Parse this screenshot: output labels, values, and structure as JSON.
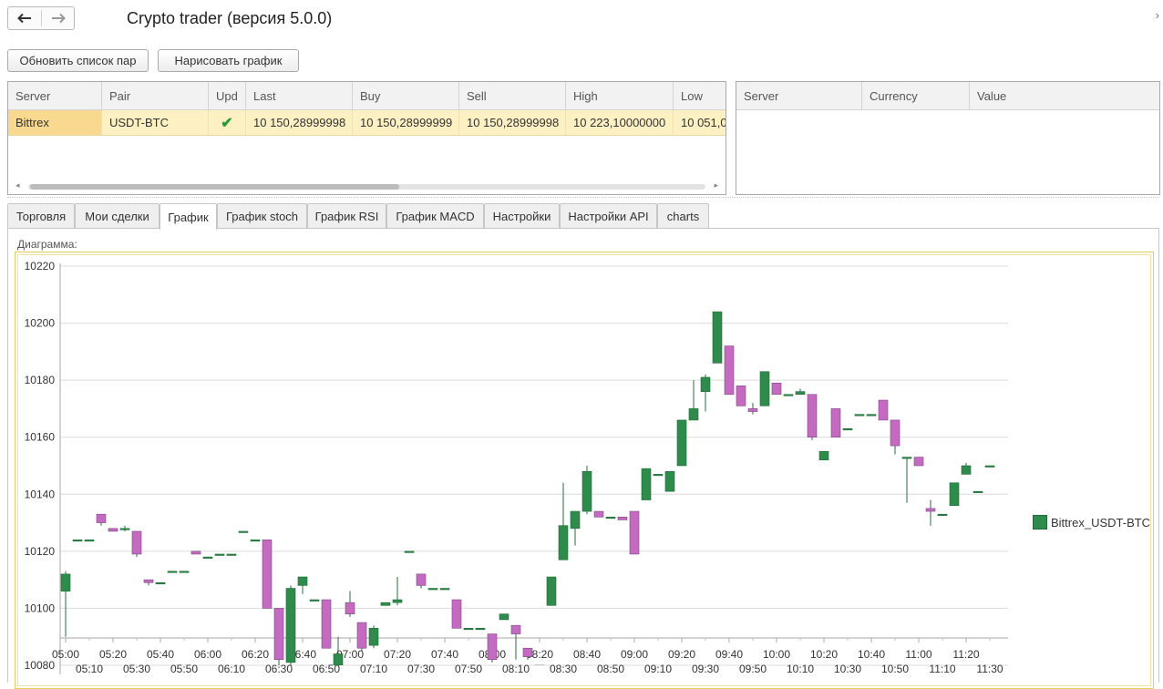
{
  "window": {
    "title": "Crypto trader (версия 5.0.0)",
    "back_icon": "arrow-left",
    "forward_icon": "arrow-right",
    "corner_icon": "chevron-right"
  },
  "toolbar": {
    "refresh_pairs_label": "Обновить список пар",
    "draw_chart_label": "Нарисовать график"
  },
  "pairs_table": {
    "columns": [
      "Server",
      "Pair",
      "Upd",
      "Last",
      "Buy",
      "Sell",
      "High",
      "Low"
    ],
    "rows": [
      {
        "server": "Bittrex",
        "pair": "USDT-BTC",
        "upd": "✔",
        "last": "10 150,28999998",
        "buy": "10 150,28999999",
        "sell": "10 150,28999998",
        "high": "10 223,10000000",
        "low": "10 051,0"
      }
    ]
  },
  "balances_table": {
    "columns": [
      "Server",
      "Currency",
      "Value"
    ]
  },
  "tabs": [
    {
      "label": "Торговля"
    },
    {
      "label": "Мои сделки"
    },
    {
      "label": "График",
      "active": true
    },
    {
      "label": "График stoch"
    },
    {
      "label": "График RSI"
    },
    {
      "label": "График MACD"
    },
    {
      "label": "Настройки"
    },
    {
      "label": "Настройки API"
    },
    {
      "label": "charts"
    }
  ],
  "diagram_label": "Диаграмма:",
  "colors": {
    "bull": "#2f8b4b",
    "bear": "#c56ac1",
    "grid": "#dcdcdc",
    "selected_row": "#fdf0c2",
    "selected_cell": "#f9d990",
    "chart_border": "#e3cf59"
  },
  "chart_data": {
    "type": "candlestick",
    "title": "",
    "xlabel": "",
    "ylabel": "",
    "ylim": [
      10080,
      10220
    ],
    "y_ticks": [
      10080,
      10100,
      10120,
      10140,
      10160,
      10180,
      10200,
      10220
    ],
    "x_ticks_upper": [
      "05:00",
      "05:20",
      "05:40",
      "06:00",
      "06:20",
      "06:40",
      "07:00",
      "07:20",
      "07:40",
      "08:00",
      "08:20",
      "08:40",
      "09:00",
      "09:20",
      "09:40",
      "10:00",
      "10:20",
      "10:40",
      "11:00",
      "11:20"
    ],
    "x_ticks_lower": [
      "05:10",
      "05:30",
      "05:50",
      "06:10",
      "06:30",
      "06:50",
      "07:10",
      "07:30",
      "07:50",
      "08:10",
      "08:30",
      "08:50",
      "09:10",
      "09:30",
      "09:50",
      "10:10",
      "10:30",
      "10:50",
      "11:10",
      "11:30"
    ],
    "legend": [
      {
        "name": "Bittrex_USDT-BTC",
        "position": "right"
      }
    ],
    "series": [
      {
        "name": "Bittrex_USDT-BTC",
        "candles": [
          {
            "t": "05:00",
            "o": 10106,
            "h": 10113,
            "l": 10090,
            "c": 10112
          },
          {
            "t": "05:05",
            "o": 10124,
            "h": 10124,
            "l": 10124,
            "c": 10124
          },
          {
            "t": "05:10",
            "o": 10124,
            "h": 10124,
            "l": 10124,
            "c": 10124
          },
          {
            "t": "05:15",
            "o": 10133,
            "h": 10133,
            "l": 10129,
            "c": 10130
          },
          {
            "t": "05:20",
            "o": 10128,
            "h": 10128,
            "l": 10127,
            "c": 10127
          },
          {
            "t": "05:25",
            "o": 10128,
            "h": 10129,
            "l": 10127,
            "c": 10128
          },
          {
            "t": "05:30",
            "o": 10127,
            "h": 10127,
            "l": 10118,
            "c": 10119
          },
          {
            "t": "05:35",
            "o": 10110,
            "h": 10110,
            "l": 10108,
            "c": 10109
          },
          {
            "t": "05:40",
            "o": 10109,
            "h": 10109,
            "l": 10109,
            "c": 10109
          },
          {
            "t": "05:45",
            "o": 10113,
            "h": 10113,
            "l": 10113,
            "c": 10113
          },
          {
            "t": "05:50",
            "o": 10113,
            "h": 10113,
            "l": 10113,
            "c": 10113
          },
          {
            "t": "05:55",
            "o": 10120,
            "h": 10120,
            "l": 10119,
            "c": 10119
          },
          {
            "t": "06:00",
            "o": 10118,
            "h": 10118,
            "l": 10118,
            "c": 10118
          },
          {
            "t": "06:05",
            "o": 10119,
            "h": 10119,
            "l": 10119,
            "c": 10119
          },
          {
            "t": "06:10",
            "o": 10119,
            "h": 10119,
            "l": 10119,
            "c": 10119
          },
          {
            "t": "06:15",
            "o": 10127,
            "h": 10127,
            "l": 10127,
            "c": 10127
          },
          {
            "t": "06:20",
            "o": 10124,
            "h": 10124,
            "l": 10124,
            "c": 10124
          },
          {
            "t": "06:25",
            "o": 10124,
            "h": 10124,
            "l": 10100,
            "c": 10100
          },
          {
            "t": "06:30",
            "o": 10100,
            "h": 10100,
            "l": 10080,
            "c": 10082
          },
          {
            "t": "06:35",
            "o": 10081,
            "h": 10108,
            "l": 10080,
            "c": 10107
          },
          {
            "t": "06:40",
            "o": 10108,
            "h": 10111,
            "l": 10105,
            "c": 10111
          },
          {
            "t": "06:45",
            "o": 10103,
            "h": 10103,
            "l": 10103,
            "c": 10103
          },
          {
            "t": "06:50",
            "o": 10103,
            "h": 10103,
            "l": 10086,
            "c": 10086
          },
          {
            "t": "06:55",
            "o": 10080,
            "h": 10090,
            "l": 10080,
            "c": 10084
          },
          {
            "t": "07:00",
            "o": 10102,
            "h": 10106,
            "l": 10097,
            "c": 10098
          },
          {
            "t": "07:05",
            "o": 10095,
            "h": 10095,
            "l": 10085,
            "c": 10086
          },
          {
            "t": "07:10",
            "o": 10087,
            "h": 10094,
            "l": 10086,
            "c": 10093
          },
          {
            "t": "07:15",
            "o": 10101,
            "h": 10102,
            "l": 10101,
            "c": 10102
          },
          {
            "t": "07:20",
            "o": 10102,
            "h": 10111,
            "l": 10101,
            "c": 10103
          },
          {
            "t": "07:25",
            "o": 10120,
            "h": 10120,
            "l": 10120,
            "c": 10120
          },
          {
            "t": "07:30",
            "o": 10112,
            "h": 10112,
            "l": 10107,
            "c": 10108
          },
          {
            "t": "07:35",
            "o": 10107,
            "h": 10107,
            "l": 10107,
            "c": 10107
          },
          {
            "t": "07:40",
            "o": 10107,
            "h": 10107,
            "l": 10107,
            "c": 10107
          },
          {
            "t": "07:45",
            "o": 10103,
            "h": 10103,
            "l": 10093,
            "c": 10093
          },
          {
            "t": "07:50",
            "o": 10093,
            "h": 10093,
            "l": 10093,
            "c": 10093
          },
          {
            "t": "07:55",
            "o": 10093,
            "h": 10093,
            "l": 10093,
            "c": 10093
          },
          {
            "t": "08:00",
            "o": 10091,
            "h": 10091,
            "l": 10081,
            "c": 10082
          },
          {
            "t": "08:05",
            "o": 10096,
            "h": 10098,
            "l": 10096,
            "c": 10098
          },
          {
            "t": "08:10",
            "o": 10094,
            "h": 10094,
            "l": 10082,
            "c": 10091
          },
          {
            "t": "08:15",
            "o": 10086,
            "h": 10086,
            "l": 10082,
            "c": 10083
          },
          {
            "t": "08:20",
            "o": 10080,
            "h": 10080,
            "l": 10080,
            "c": 10080
          },
          {
            "t": "08:25",
            "o": 10101,
            "h": 10111,
            "l": 10101,
            "c": 10111
          },
          {
            "t": "08:30",
            "o": 10117,
            "h": 10144,
            "l": 10117,
            "c": 10129
          },
          {
            "t": "08:35",
            "o": 10128,
            "h": 10134,
            "l": 10122,
            "c": 10134
          },
          {
            "t": "08:40",
            "o": 10134,
            "h": 10150,
            "l": 10133,
            "c": 10148
          },
          {
            "t": "08:45",
            "o": 10134,
            "h": 10134,
            "l": 10132,
            "c": 10132
          },
          {
            "t": "08:50",
            "o": 10132,
            "h": 10132,
            "l": 10132,
            "c": 10132
          },
          {
            "t": "08:55",
            "o": 10132,
            "h": 10132,
            "l": 10131,
            "c": 10131
          },
          {
            "t": "09:00",
            "o": 10134,
            "h": 10134,
            "l": 10119,
            "c": 10119
          },
          {
            "t": "09:05",
            "o": 10138,
            "h": 10149,
            "l": 10138,
            "c": 10149
          },
          {
            "t": "09:10",
            "o": 10147,
            "h": 10147,
            "l": 10147,
            "c": 10147
          },
          {
            "t": "09:15",
            "o": 10141,
            "h": 10148,
            "l": 10141,
            "c": 10148
          },
          {
            "t": "09:20",
            "o": 10150,
            "h": 10166,
            "l": 10150,
            "c": 10166
          },
          {
            "t": "09:25",
            "o": 10166,
            "h": 10180,
            "l": 10166,
            "c": 10170
          },
          {
            "t": "09:30",
            "o": 10176,
            "h": 10182,
            "l": 10169,
            "c": 10181
          },
          {
            "t": "09:35",
            "o": 10186,
            "h": 10204,
            "l": 10186,
            "c": 10204
          },
          {
            "t": "09:40",
            "o": 10192,
            "h": 10192,
            "l": 10175,
            "c": 10175
          },
          {
            "t": "09:45",
            "o": 10178,
            "h": 10178,
            "l": 10171,
            "c": 10171
          },
          {
            "t": "09:50",
            "o": 10170,
            "h": 10172,
            "l": 10168,
            "c": 10169
          },
          {
            "t": "09:55",
            "o": 10171,
            "h": 10183,
            "l": 10171,
            "c": 10183
          },
          {
            "t": "10:00",
            "o": 10179,
            "h": 10179,
            "l": 10175,
            "c": 10175
          },
          {
            "t": "10:05",
            "o": 10175,
            "h": 10175,
            "l": 10175,
            "c": 10175
          },
          {
            "t": "10:10",
            "o": 10175,
            "h": 10177,
            "l": 10175,
            "c": 10176
          },
          {
            "t": "10:15",
            "o": 10175,
            "h": 10175,
            "l": 10159,
            "c": 10160
          },
          {
            "t": "10:20",
            "o": 10152,
            "h": 10155,
            "l": 10152,
            "c": 10155
          },
          {
            "t": "10:25",
            "o": 10170,
            "h": 10170,
            "l": 10160,
            "c": 10160
          },
          {
            "t": "10:30",
            "o": 10163,
            "h": 10163,
            "l": 10163,
            "c": 10163
          },
          {
            "t": "10:35",
            "o": 10168,
            "h": 10168,
            "l": 10168,
            "c": 10168
          },
          {
            "t": "10:40",
            "o": 10168,
            "h": 10168,
            "l": 10168,
            "c": 10168
          },
          {
            "t": "10:45",
            "o": 10173,
            "h": 10173,
            "l": 10166,
            "c": 10166
          },
          {
            "t": "10:50",
            "o": 10166,
            "h": 10166,
            "l": 10154,
            "c": 10157
          },
          {
            "t": "10:55",
            "o": 10153,
            "h": 10153,
            "l": 10137,
            "c": 10153
          },
          {
            "t": "11:00",
            "o": 10153,
            "h": 10153,
            "l": 10150,
            "c": 10150
          },
          {
            "t": "11:05",
            "o": 10135,
            "h": 10138,
            "l": 10129,
            "c": 10134
          },
          {
            "t": "11:10",
            "o": 10133,
            "h": 10133,
            "l": 10133,
            "c": 10133
          },
          {
            "t": "11:15",
            "o": 10136,
            "h": 10144,
            "l": 10136,
            "c": 10144
          },
          {
            "t": "11:20",
            "o": 10147,
            "h": 10151,
            "l": 10147,
            "c": 10150
          },
          {
            "t": "11:25",
            "o": 10141,
            "h": 10141,
            "l": 10141,
            "c": 10141
          },
          {
            "t": "11:30",
            "o": 10150,
            "h": 10150,
            "l": 10150,
            "c": 10150
          }
        ]
      }
    ]
  }
}
